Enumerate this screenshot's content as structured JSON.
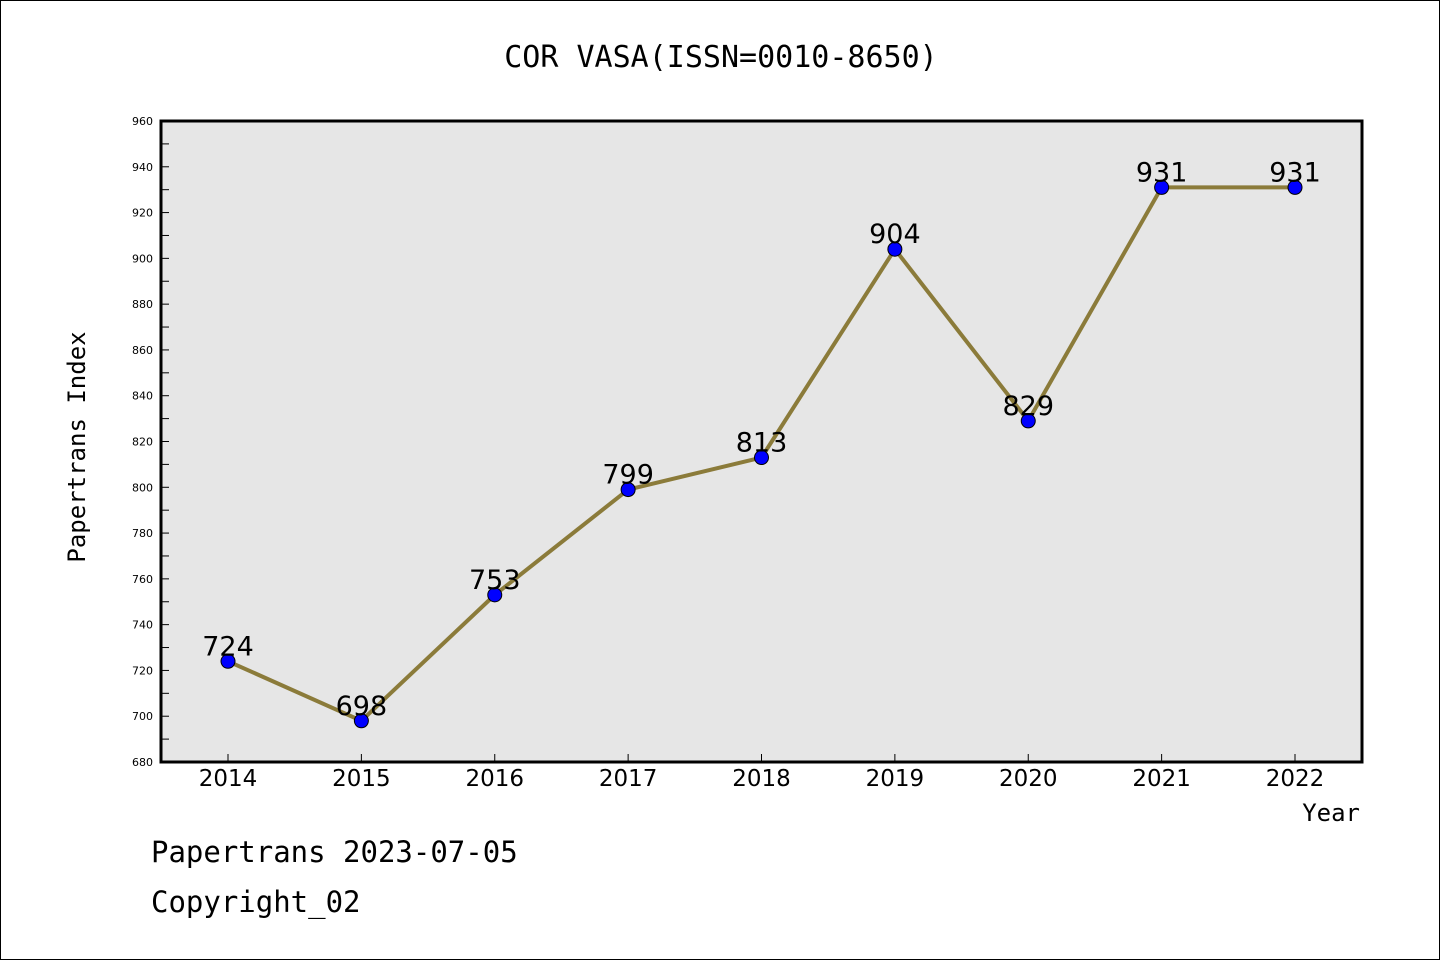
{
  "chart_data": {
    "type": "line",
    "title": "COR VASA(ISSN=0010-8650)",
    "xlabel": "Year",
    "ylabel": "Papertrans Index",
    "categories": [
      "2014",
      "2015",
      "2016",
      "2017",
      "2018",
      "2019",
      "2020",
      "2021",
      "2022"
    ],
    "series": [
      {
        "values": [
          724,
          698,
          753,
          799,
          813,
          904,
          829,
          931,
          931
        ]
      }
    ],
    "data_labels": [
      "724",
      "698",
      "753",
      "799",
      "813",
      "904",
      "829",
      "931",
      "931"
    ],
    "yticks": [
      "680",
      "700",
      "720",
      "740",
      "760",
      "780",
      "800",
      "820",
      "840",
      "860",
      "880",
      "900",
      "920",
      "940",
      "960"
    ],
    "ylim": [
      680,
      960
    ],
    "grid": false,
    "colors": {
      "line": "#8B7B3A",
      "marker": "#0000FF",
      "plot_background": "#E6E6E6"
    }
  },
  "footer": {
    "line1": "Papertrans 2023-07-05",
    "line2": "Copyright_02"
  }
}
